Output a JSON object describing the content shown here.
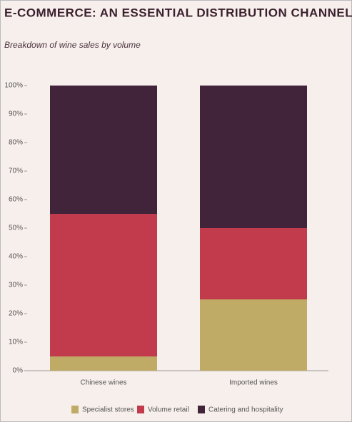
{
  "chart_data": {
    "type": "stacked_bar",
    "title": "E-COMMERCE: AN ESSENTIAL DISTRIBUTION CHANNEL",
    "subtitle": "Breakdown of wine sales by volume",
    "categories": [
      "Chinese wines",
      "Imported wines"
    ],
    "series": [
      {
        "name": "Specialist stores",
        "color": "#bfaa66",
        "values": [
          5,
          25
        ]
      },
      {
        "name": "Volume retail",
        "color": "#c23b4c",
        "values": [
          50,
          25
        ]
      },
      {
        "name": "Catering and hospitality",
        "color": "#41233a",
        "values": [
          45,
          50
        ]
      }
    ],
    "ylim": [
      0,
      100
    ],
    "yticks": [
      {
        "value": 0,
        "label": "0%"
      },
      {
        "value": 10,
        "label": "10%"
      },
      {
        "value": 20,
        "label": "20%"
      },
      {
        "value": 30,
        "label": "30%"
      },
      {
        "value": 40,
        "label": "40%"
      },
      {
        "value": 50,
        "label": "50%"
      },
      {
        "value": 60,
        "label": "60%"
      },
      {
        "value": 70,
        "label": "70%"
      },
      {
        "value": 80,
        "label": "80%"
      },
      {
        "value": 90,
        "label": "90%"
      },
      {
        "value": 100,
        "label": "100%"
      }
    ],
    "grid": false
  }
}
